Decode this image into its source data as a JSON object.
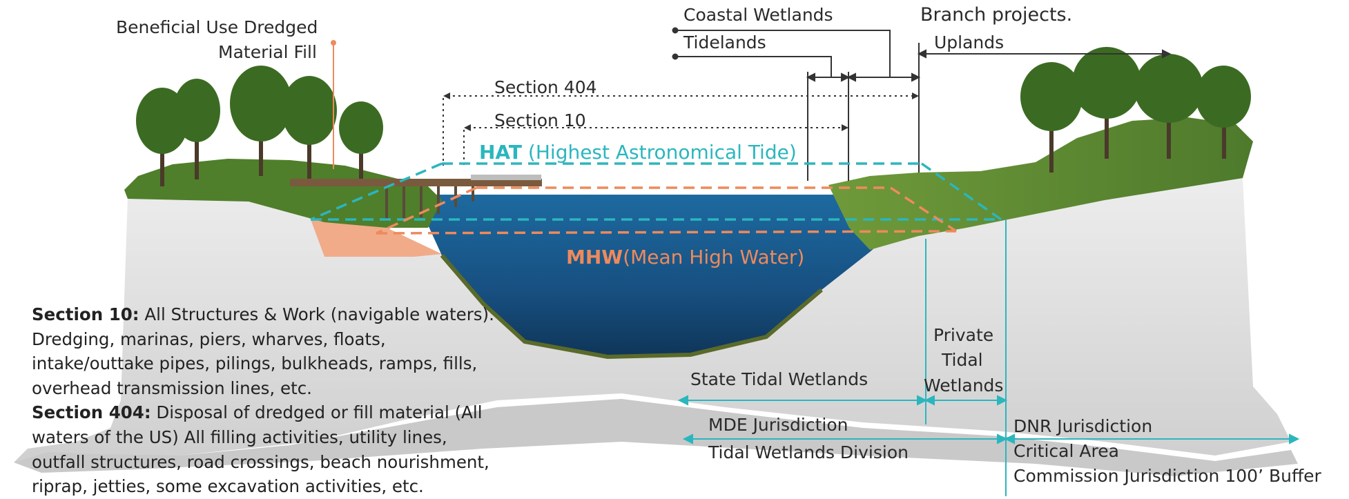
{
  "texts": {
    "beneficial_use": [
      "Beneficial Use Dredged",
      "Material Fill"
    ],
    "coastal_wetlands": "Coastal Wetlands",
    "tidelands": "Tidelands",
    "branch_projects": "Branch projects.",
    "uplands": "Uplands",
    "section_404": "Section 404",
    "section_10": "Section 10",
    "hat_abbr": "HAT",
    "hat_full": " (Highest Astronomical Tide)",
    "mhw_abbr": "MHW",
    "mhw_full": "(Mean High Water)",
    "private_tidal_wetlands": [
      "Private",
      "Tidal",
      "Wetlands"
    ],
    "state_tidal_wetlands": "State Tidal Wetlands",
    "mde_jurisdiction": "MDE Jurisdiction",
    "tidal_wetlands_division": "Tidal Wetlands Division",
    "dnr_jurisdiction": "DNR Jurisdiction",
    "critical_area": "Critical Area",
    "commission_jurisdiction": "Commission Jurisdiction 100’ Buffer"
  },
  "notes": {
    "section10": {
      "head": "Section 10:",
      "lines": [
        " All Structures & Work (navigable waters).",
        "Dredging, marinas, piers, wharves, floats,",
        "intake/outtake pipes, pilings, bulkheads, ramps, fills,",
        "overhead transmission lines, etc."
      ]
    },
    "section404": {
      "head": "Section 404:",
      "lines": [
        " Disposal of dredged or fill material (All",
        "waters of the US) All filling activities, utility lines,",
        "outfall structures, road crossings, beach nourishment,",
        "riprap, jetties, some excavation activities, etc."
      ]
    }
  },
  "colors": {
    "hat": "#2bb6be",
    "mhw": "#ee8a5c",
    "water": "#1f5a8f",
    "vegetation": "#4f7f2a",
    "fill": "#f2a47e",
    "ground": "#d8d8d8"
  }
}
